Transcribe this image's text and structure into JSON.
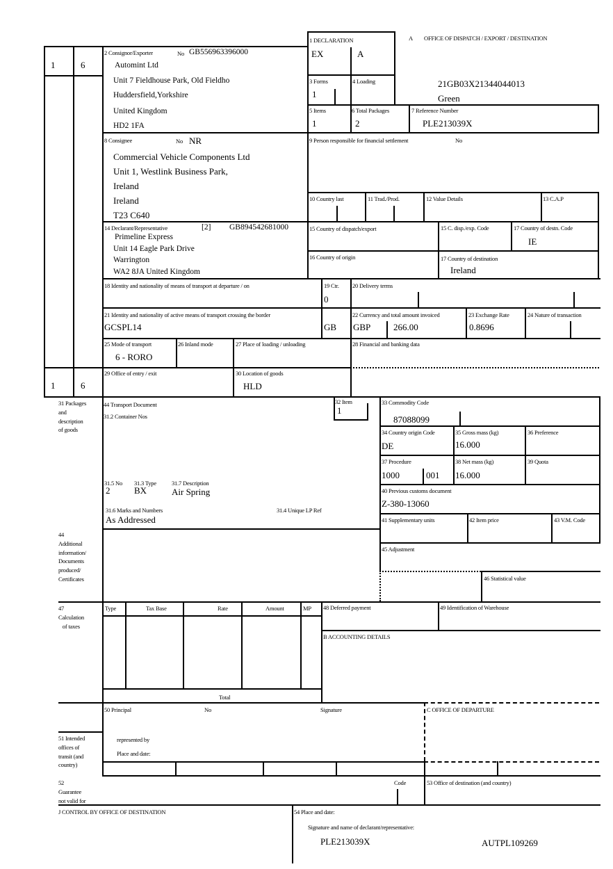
{
  "header": {
    "a_letter": "A",
    "office_title": "OFFICE OF DISPATCH / EXPORT / DESTINATION",
    "mrn": "21GB03X21344044013",
    "route": "Green"
  },
  "left_copy": {
    "top_left": "1",
    "top_right": "6",
    "bottom_left": "1",
    "bottom_right": "6"
  },
  "box1": {
    "label": "1 DECLARATION",
    "v1": "EX",
    "v2": "A"
  },
  "box2": {
    "label": "2 Consignor/Exporter",
    "no_label": "No",
    "no": "GB556963396000",
    "lines": [
      "Automint Ltd",
      "Unit 7 Fieldhouse Park, Old Fieldho",
      "Huddersfield,Yorkshire",
      "United Kingdom",
      "HD2 1FA"
    ]
  },
  "box3": {
    "label": "3 Forms",
    "value": "1"
  },
  "box4": {
    "label": "4 Loading"
  },
  "box5": {
    "label": "5 Items",
    "value": "1"
  },
  "box6": {
    "label": "6 Total Packages",
    "value": "2"
  },
  "box7": {
    "label": "7 Reference Number",
    "value": "PLE213039X"
  },
  "box8": {
    "label": "8 Consignee",
    "no_label": "No",
    "no": "NR",
    "lines": [
      "Commercial Vehicle Components Ltd",
      "Unit 1, Westlink Business Park,",
      "Ireland",
      "Ireland",
      "T23 C640"
    ]
  },
  "box9": {
    "label": "9 Person responsible for financial settlement",
    "no_label": "No"
  },
  "box10": {
    "label": "10 Country last"
  },
  "box11": {
    "label": "11 Trad./Prod."
  },
  "box12": {
    "label": "12 Value Details"
  },
  "box13": {
    "label": "13 C.A.P"
  },
  "box14": {
    "label": "14 Declarant/Representative",
    "type": "[2]",
    "no": "GB894542681000",
    "lines": [
      "Primeline Express",
      "Unit 14 Eagle Park Drive",
      "Warrington",
      "WA2 8JA United Kingdom"
    ]
  },
  "box15": {
    "label": "15 Country of dispatch/export"
  },
  "box15c": {
    "label": "15 C. disp./exp. Code"
  },
  "box17c": {
    "label": "17 Country of destn. Code",
    "value": "IE"
  },
  "box16": {
    "label": "16 Country of origin"
  },
  "box17": {
    "label": "17 Country of destination",
    "value": "Ireland"
  },
  "box18": {
    "label": "18 Identity and nationality of means of transport at departure / on"
  },
  "box19": {
    "label": "19 Ctr.",
    "value": "0"
  },
  "box20": {
    "label": "20 Delivery terms"
  },
  "box21": {
    "label": "21 Identity and nationality of active means of transport crossing the border",
    "value": "GCSPL14",
    "nationality": "GB"
  },
  "box22": {
    "label": "22 Currency and total amount invoiced",
    "currency": "GBP",
    "amount": "266.00"
  },
  "box23": {
    "label": "23 Exchange Rate",
    "value": "0.8696"
  },
  "box24": {
    "label": "24 Nature of transaction"
  },
  "box25": {
    "label": "25 Mode of transport",
    "value": "6 - RORO"
  },
  "box26": {
    "label": "26 Inland mode"
  },
  "box27": {
    "label": "27 Place of loading / unloading"
  },
  "box28": {
    "label": "28 Financial and banking data"
  },
  "box29": {
    "label": "29 Office of entry / exit"
  },
  "box30": {
    "label": "30 Location of goods",
    "value": "HLD"
  },
  "box31": {
    "label": "31 Packages\nand\ndescription\nof goods",
    "transport_doc": "44 Transport Document",
    "container": "31.2 Container Nos",
    "no_label": "31.5 No",
    "no": "2",
    "type_label": "31.3 Type",
    "type": "BX",
    "desc_label": "31.7 Description",
    "desc": "Air Spring",
    "marks_label": "31.6 Marks and Numbers",
    "marks": "As Addressed",
    "unique_label": "31.4 Unique LP Ref"
  },
  "box32": {
    "label": "32 Item",
    "value": "1"
  },
  "box33": {
    "label": "33 Commodity Code",
    "value": "87088099"
  },
  "box34": {
    "label": "34 Country origin Code",
    "value": "DE"
  },
  "box35": {
    "label": "35 Gross mass (kg)",
    "value": "16.000"
  },
  "box36": {
    "label": "36 Preference"
  },
  "box37": {
    "label": "37 Procedure",
    "value": "1000",
    "value2": "001"
  },
  "box38": {
    "label": "38 Net mass (kg)",
    "value": "16.000"
  },
  "box39": {
    "label": "39 Quota"
  },
  "box40": {
    "label": "40 Previous customs document",
    "value": "Z-380-13060"
  },
  "box41": {
    "label": "41 Supplementary units"
  },
  "box42": {
    "label": "42 Item price"
  },
  "box43": {
    "label": "43 V.M. Code"
  },
  "box44": {
    "label": "44\nAdditional\ninformation/\nDocuments\nproduced/\nCertificates"
  },
  "box45": {
    "label": "45 Adjustment"
  },
  "box46": {
    "label": "46 Statistical value"
  },
  "box47": {
    "label": "47\nCalculation\n   of taxes",
    "columns": [
      "Type",
      "Tax Base",
      "Rate",
      "Amount",
      "MP"
    ],
    "total_label": "Total"
  },
  "box48": {
    "label": "48 Deferred payment"
  },
  "box49": {
    "label": "49 Identification of Warehouse"
  },
  "boxB": {
    "label": "B ACCOUNTING DETAILS"
  },
  "box50": {
    "label": "50 Principal",
    "no_label": "No",
    "signature_label": "Signature",
    "represented_by": "represented by",
    "place_date": "Place and date:"
  },
  "boxC": {
    "label": "C OFFICE OF DEPARTURE"
  },
  "box51": {
    "label": "51 Intended\noffices of\ntransit (and\ncountry)"
  },
  "box52": {
    "label": "52\nGuarantee\nnot valid for",
    "code_label": "Code"
  },
  "box53": {
    "label": "53 Office of destination (and country)"
  },
  "boxJ": {
    "label": "J CONTROL BY OFFICE OF DESTINATION"
  },
  "box54": {
    "label": "54 Place and date:",
    "signature_label": "Signature and name of declarant/representative:",
    "reference": "PLE213039X",
    "auth": "AUTPL109269"
  }
}
